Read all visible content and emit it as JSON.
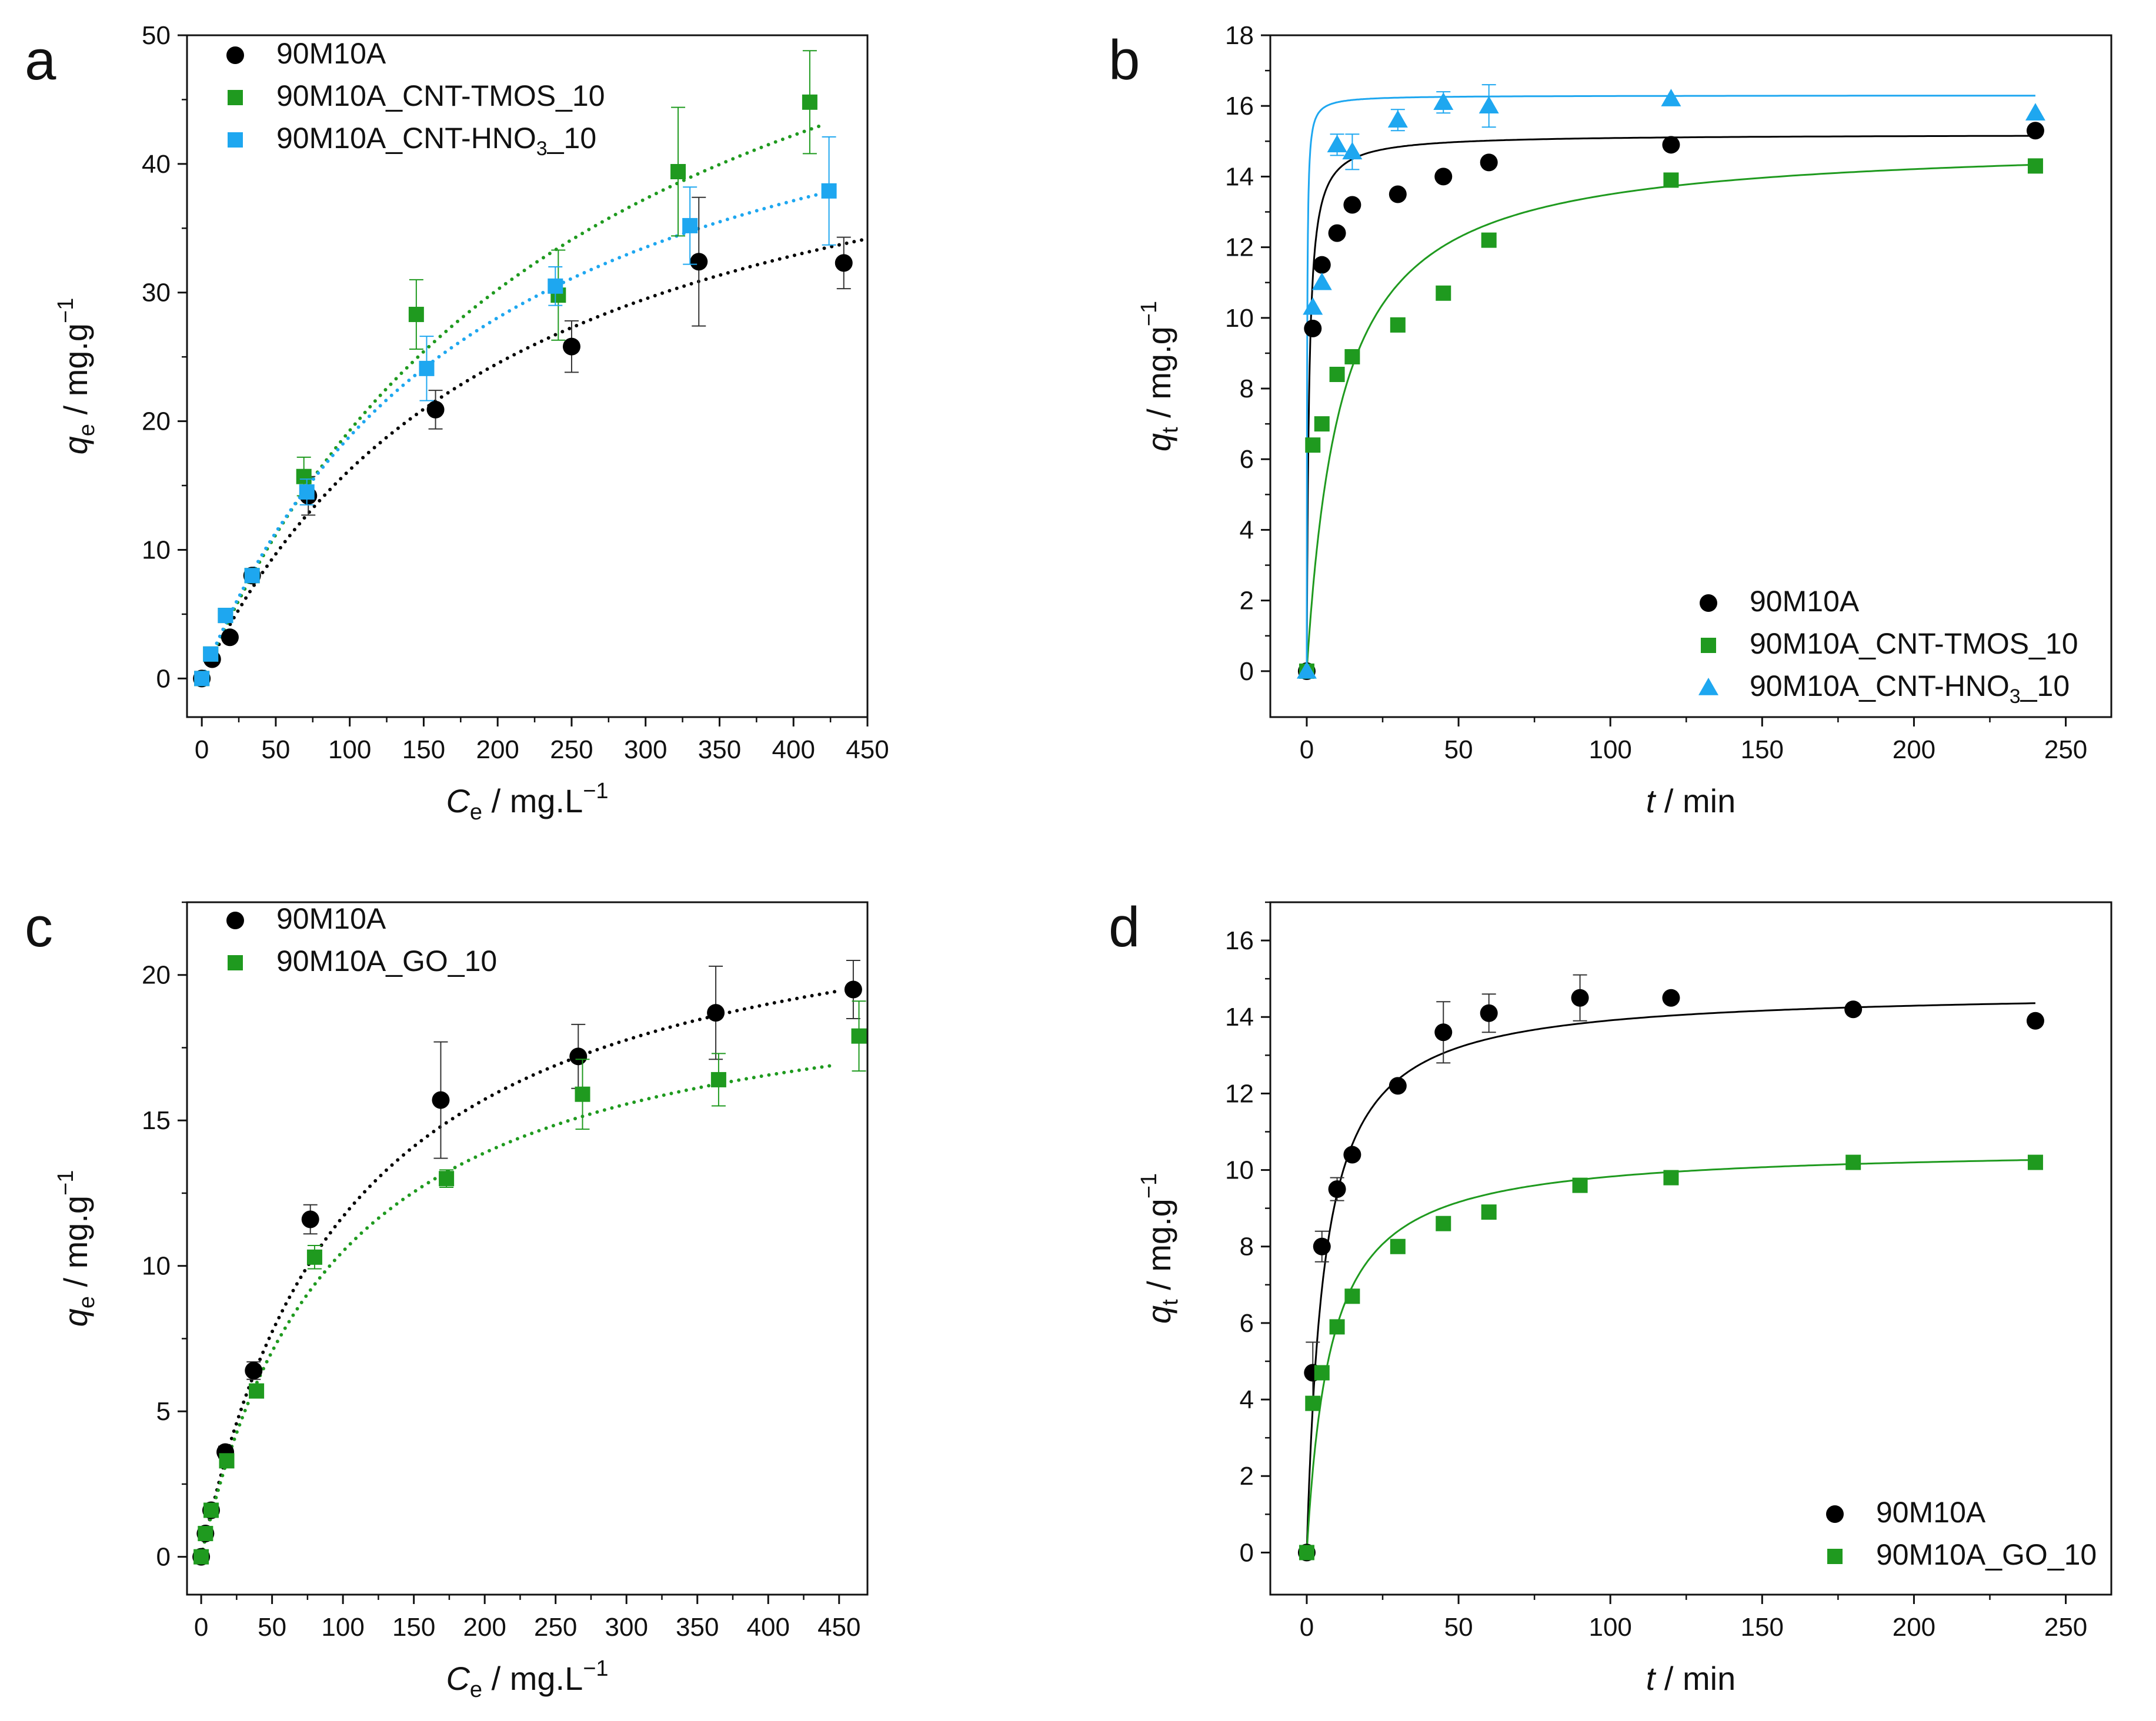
{
  "chart_data": [
    {
      "type": "scatter",
      "panel_label": "a",
      "xlabel": {
        "main": "C",
        "sub": "e",
        "rest": " / mg.L",
        "sup": "−1"
      },
      "ylabel": {
        "main": "q",
        "sub": "e",
        "rest": " / mg.g",
        "sup": "−1"
      },
      "xlim": [
        -10,
        450
      ],
      "ylim": [
        -3,
        50
      ],
      "xticks": [
        0,
        50,
        100,
        150,
        200,
        250,
        300,
        350,
        400,
        450
      ],
      "yticks": [
        0,
        10,
        20,
        30,
        40,
        50
      ],
      "grid": false,
      "legend_position": "top-left",
      "series": [
        {
          "name": "90M10A",
          "legend": {
            "main": "90M10A",
            "sub": "",
            "tail": ""
          },
          "color": "#000000",
          "marker": "circle",
          "x": [
            0,
            7,
            19,
            34,
            72,
            158,
            250,
            336,
            434
          ],
          "y": [
            0,
            1.5,
            3.2,
            8.0,
            14.2,
            20.9,
            25.8,
            32.4,
            32.3
          ],
          "yerr": [
            0,
            0.3,
            0.3,
            0.5,
            1.5,
            1.5,
            2.0,
            5.0,
            2.0
          ],
          "fit": {
            "style": "dotted",
            "x_max": 450,
            "qm": 50.0,
            "kl": 0.0048
          }
        },
        {
          "name": "90M10A_CNT-TMOS_10",
          "legend": {
            "main": "90M10A_CNT-TMOS_10",
            "sub": "",
            "tail": ""
          },
          "color": "#1f9a1f",
          "marker": "square",
          "x": [
            0,
            6,
            16,
            34,
            69,
            145,
            241,
            322,
            411
          ],
          "y": [
            0,
            1.9,
            4.9,
            8.0,
            15.7,
            28.3,
            29.8,
            39.4,
            44.8
          ],
          "yerr": [
            0,
            0.3,
            0.5,
            0.5,
            1.5,
            2.7,
            3.5,
            5.0,
            4.0
          ],
          "fit": {
            "style": "dotted",
            "x_max": 420,
            "qm": 70.0,
            "kl": 0.0038
          }
        },
        {
          "name": "90M10A_CNT-HNO3_10",
          "legend": {
            "main": "90M10A_CNT-HNO",
            "sub": "3",
            "tail": "_10"
          },
          "color": "#1ea7f0",
          "marker": "square",
          "x": [
            0,
            6,
            16,
            34,
            71,
            152,
            239,
            330,
            424
          ],
          "y": [
            0,
            1.9,
            4.9,
            8.0,
            14.5,
            24.1,
            30.5,
            35.2,
            37.9
          ],
          "yerr": [
            0,
            0.3,
            0.5,
            0.5,
            1.0,
            2.5,
            1.5,
            3.0,
            4.2
          ],
          "fit": {
            "style": "dotted",
            "x_max": 425,
            "qm": 55.0,
            "kl": 0.0052
          }
        }
      ]
    },
    {
      "type": "scatter",
      "panel_label": "b",
      "xlabel": {
        "main": "t",
        "sub": "",
        "rest": " / min",
        "sup": ""
      },
      "ylabel": {
        "main": "q",
        "sub": "t",
        "rest": " / mg.g",
        "sup": "−1"
      },
      "xlim": [
        -12,
        265
      ],
      "ylim": [
        -1.3,
        18
      ],
      "xticks": [
        0,
        50,
        100,
        150,
        200,
        250
      ],
      "yticks": [
        0,
        2,
        4,
        6,
        8,
        10,
        12,
        14,
        16,
        18
      ],
      "grid": false,
      "legend_position": "bottom-right",
      "series": [
        {
          "name": "90M10A",
          "legend": {
            "main": "90M10A",
            "sub": "",
            "tail": ""
          },
          "color": "#000000",
          "marker": "circle",
          "x": [
            0,
            2,
            5,
            10,
            15,
            30,
            45,
            60,
            120,
            240
          ],
          "y": [
            0,
            9.7,
            11.5,
            12.4,
            13.2,
            13.5,
            14.0,
            14.4,
            14.9,
            15.3
          ],
          "yerr": [
            0,
            0,
            0,
            0,
            0,
            0,
            0,
            0,
            0,
            0
          ],
          "fit": {
            "style": "solid",
            "x_max": 240,
            "qe": 15.2,
            "k2": 0.09
          }
        },
        {
          "name": "90M10A_CNT-TMOS_10",
          "legend": {
            "main": "90M10A_CNT-TMOS_10",
            "sub": "",
            "tail": ""
          },
          "color": "#1f9a1f",
          "marker": "square",
          "x": [
            0,
            2,
            5,
            10,
            15,
            30,
            45,
            60,
            120,
            240
          ],
          "y": [
            0,
            6.4,
            7.0,
            8.4,
            8.9,
            9.8,
            10.7,
            12.2,
            13.9,
            14.3
          ],
          "yerr": [
            0,
            0,
            0,
            0,
            0,
            0,
            0,
            0,
            0,
            0
          ],
          "fit": {
            "style": "solid",
            "x_max": 240,
            "qe": 15.0,
            "k2": 0.006
          }
        },
        {
          "name": "90M10A_CNT-HNO3_10",
          "legend": {
            "main": "90M10A_CNT-HNO",
            "sub": "3",
            "tail": "_10"
          },
          "color": "#1ea7f0",
          "marker": "triangle",
          "x": [
            0,
            2,
            5,
            10,
            15,
            30,
            45,
            60,
            120,
            240
          ],
          "y": [
            0,
            10.3,
            11.0,
            14.9,
            14.7,
            15.6,
            16.1,
            16.0,
            16.2,
            15.8
          ],
          "yerr": [
            0,
            0,
            0,
            0.3,
            0.5,
            0.3,
            0.3,
            0.6,
            0,
            0
          ],
          "fit": {
            "style": "solid",
            "x_max": 240,
            "qe": 16.3,
            "k2": 0.5
          }
        }
      ]
    },
    {
      "type": "scatter",
      "panel_label": "c",
      "xlabel": {
        "main": "C",
        "sub": "e",
        "rest": " / mg.L",
        "sup": "−1"
      },
      "ylabel": {
        "main": "q",
        "sub": "e",
        "rest": " / mg.g",
        "sup": "−1"
      },
      "xlim": [
        -10,
        470
      ],
      "ylim": [
        -1.3,
        22.5
      ],
      "xticks": [
        0,
        50,
        100,
        150,
        200,
        250,
        300,
        350,
        400,
        450
      ],
      "yticks": [
        0,
        5,
        10,
        15,
        20
      ],
      "grid": false,
      "legend_position": "top-left",
      "series": [
        {
          "name": "90M10A",
          "legend": {
            "main": "90M10A",
            "sub": "",
            "tail": ""
          },
          "color": "#000000",
          "marker": "circle",
          "x": [
            0,
            3,
            7,
            17,
            37,
            77,
            169,
            266,
            363,
            460
          ],
          "y": [
            0,
            0.8,
            1.6,
            3.6,
            6.4,
            11.6,
            15.7,
            17.2,
            18.7,
            19.5
          ],
          "yerr": [
            0,
            0,
            0,
            0.2,
            0.3,
            0.5,
            2.0,
            1.1,
            1.6,
            1.0
          ],
          "fit": {
            "style": "dotted",
            "x_max": 450,
            "qm": 24.0,
            "kl": 0.0095
          }
        },
        {
          "name": "90M10A_GO_10",
          "legend": {
            "main": "90M10A_GO_10",
            "sub": "",
            "tail": ""
          },
          "color": "#1f9a1f",
          "marker": "square",
          "x": [
            0,
            3,
            7,
            18,
            39,
            80,
            173,
            269,
            365,
            464
          ],
          "y": [
            0,
            0.8,
            1.6,
            3.3,
            5.7,
            10.3,
            13.0,
            15.9,
            16.4,
            17.9
          ],
          "yerr": [
            0,
            0,
            0,
            0,
            0.2,
            0.4,
            0.3,
            1.2,
            0.9,
            1.2
          ],
          "fit": {
            "style": "dotted",
            "x_max": 445,
            "qm": 20.5,
            "kl": 0.0105
          }
        }
      ]
    },
    {
      "type": "scatter",
      "panel_label": "d",
      "xlabel": {
        "main": "t",
        "sub": "",
        "rest": " / min",
        "sup": ""
      },
      "ylabel": {
        "main": "q",
        "sub": "t",
        "rest": " / mg.g",
        "sup": "−1"
      },
      "xlim": [
        -12,
        265
      ],
      "ylim": [
        -1.1,
        17
      ],
      "xticks": [
        0,
        50,
        100,
        150,
        200,
        250
      ],
      "yticks": [
        0,
        2,
        4,
        6,
        8,
        10,
        12,
        14,
        16
      ],
      "grid": false,
      "legend_position": "bottom-right",
      "series": [
        {
          "name": "90M10A",
          "legend": {
            "main": "90M10A",
            "sub": "",
            "tail": ""
          },
          "color": "#000000",
          "marker": "circle",
          "x": [
            0,
            2,
            5,
            10,
            15,
            30,
            45,
            60,
            90,
            120,
            180,
            240
          ],
          "y": [
            0,
            4.7,
            8.0,
            9.5,
            10.4,
            12.2,
            13.6,
            14.1,
            14.5,
            14.5,
            14.2,
            13.9
          ],
          "yerr": [
            0,
            0.8,
            0.4,
            0.3,
            0,
            0,
            0.8,
            0.5,
            0.6,
            0,
            0,
            0
          ],
          "fit": {
            "style": "solid",
            "x_max": 240,
            "qe": 14.7,
            "k2": 0.012
          }
        },
        {
          "name": "90M10A_GO_10",
          "legend": {
            "main": "90M10A_GO_10",
            "sub": "",
            "tail": ""
          },
          "color": "#1f9a1f",
          "marker": "square",
          "x": [
            0,
            2,
            5,
            10,
            15,
            30,
            45,
            60,
            90,
            120,
            180,
            240
          ],
          "y": [
            0,
            3.9,
            4.7,
            5.9,
            6.7,
            8.0,
            8.6,
            8.9,
            9.6,
            9.8,
            10.2,
            10.2
          ],
          "yerr": [
            0,
            0,
            0,
            0,
            0,
            0,
            0,
            0,
            0,
            0,
            0,
            0
          ],
          "fit": {
            "style": "solid",
            "x_max": 240,
            "qe": 10.6,
            "k2": 0.012
          }
        }
      ]
    }
  ]
}
